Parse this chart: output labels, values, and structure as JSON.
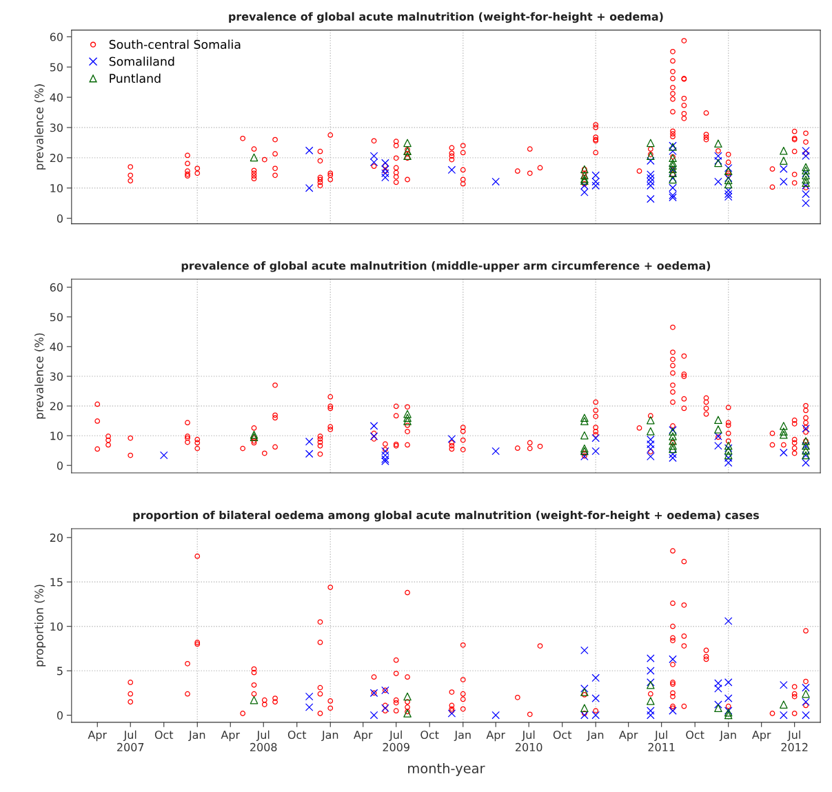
{
  "chart_data": [
    {
      "type": "scatter",
      "title": "prevalence of global acute malnutrition (weight-for-height + oedema)",
      "ylabel": "prevalence (%)",
      "xlim": [
        "2007-01-20",
        "2012-09-10"
      ],
      "ylim": [
        -1.8,
        62.2
      ],
      "yticks": [
        0,
        10,
        20,
        30,
        40,
        50,
        60
      ],
      "tick_labels": "y",
      "legend": "top left",
      "ref_lines": [
        {
          "axis": "x",
          "value": "2008-01-01",
          "color": "#bebebe",
          "line_style": "dotted"
        },
        {
          "axis": "x",
          "value": "2009-01-01",
          "color": "#bebebe",
          "line_style": "dotted"
        },
        {
          "axis": "x",
          "value": "2010-01-01",
          "color": "#bebebe",
          "line_style": "dotted"
        },
        {
          "axis": "x",
          "value": "2011-01-01",
          "color": "#bebebe",
          "line_style": "dotted"
        },
        {
          "axis": "x",
          "value": "2012-01-01",
          "color": "#bebebe",
          "line_style": "dotted"
        },
        {
          "axis": "y",
          "value": 10,
          "color": "#bebebe",
          "line_style": "dotted"
        },
        {
          "axis": "y",
          "value": 20,
          "color": "#bebebe",
          "line_style": "dotted"
        },
        {
          "axis": "y",
          "value": 30,
          "color": "#bebebe",
          "line_style": "dotted"
        }
      ],
      "series": [
        {
          "name": "South-central Somalia",
          "color": "#ff0000",
          "marker": "circle",
          "x": [
            "2007-07-01",
            "2007-07-01",
            "2007-07-01",
            "2007-12-05",
            "2007-12-05",
            "2007-12-05",
            "2007-12-05",
            "2007-12-05",
            "2008-01-01",
            "2008-01-01",
            "2008-05-05",
            "2008-06-05",
            "2008-06-05",
            "2008-06-05",
            "2008-06-05",
            "2008-06-05",
            "2008-07-04",
            "2008-08-02",
            "2008-08-02",
            "2008-08-02",
            "2008-08-02",
            "2008-12-04",
            "2008-12-04",
            "2008-12-04",
            "2008-12-04",
            "2008-12-04",
            "2008-12-04",
            "2009-01-01",
            "2009-01-01",
            "2009-01-01",
            "2009-01-01",
            "2009-05-01",
            "2009-05-01",
            "2009-06-01",
            "2009-06-01",
            "2009-07-01",
            "2009-07-01",
            "2009-07-01",
            "2009-07-01",
            "2009-07-01",
            "2009-07-01",
            "2009-07-01",
            "2009-08-01",
            "2009-08-01",
            "2009-08-01",
            "2009-08-01",
            "2009-12-01",
            "2009-12-01",
            "2009-12-01",
            "2009-12-01",
            "2010-01-01",
            "2010-01-01",
            "2010-01-01",
            "2010-01-01",
            "2010-01-01",
            "2010-05-31",
            "2010-07-04",
            "2010-07-04",
            "2010-08-01",
            "2010-12-01",
            "2010-12-01",
            "2010-12-01",
            "2010-12-01",
            "2011-01-01",
            "2011-01-01",
            "2011-01-01",
            "2011-01-01",
            "2011-01-01",
            "2011-01-01",
            "2011-05-01",
            "2011-06-01",
            "2011-06-01",
            "2011-08-01",
            "2011-08-01",
            "2011-08-01",
            "2011-08-01",
            "2011-08-01",
            "2011-08-01",
            "2011-08-01",
            "2011-08-01",
            "2011-08-01",
            "2011-08-01",
            "2011-08-01",
            "2011-08-01",
            "2011-08-01",
            "2011-08-01",
            "2011-09-01",
            "2011-09-01",
            "2011-09-01",
            "2011-09-01",
            "2011-09-01",
            "2011-09-01",
            "2011-09-01",
            "2011-11-01",
            "2011-11-01",
            "2011-11-01",
            "2011-11-01",
            "2011-12-04",
            "2012-01-01",
            "2012-01-01",
            "2012-01-01",
            "2012-01-01",
            "2012-05-01",
            "2012-05-01",
            "2012-07-01",
            "2012-07-01",
            "2012-07-01",
            "2012-07-01",
            "2012-07-01",
            "2012-07-01",
            "2012-08-01",
            "2012-08-01",
            "2012-08-01",
            "2012-08-01"
          ],
          "values": [
            17,
            14.2,
            12.4,
            20.8,
            18.1,
            15.6,
            14.6,
            14.0,
            16.5,
            14.9,
            26.4,
            22.9,
            15.8,
            14.9,
            14.0,
            13.1,
            19.4,
            26.0,
            21.3,
            16.5,
            14.2,
            22.1,
            19.0,
            13.5,
            12.8,
            11.9,
            10.8,
            27.5,
            14.9,
            14.2,
            12.8,
            25.6,
            17.2,
            17.4,
            15.6,
            25.4,
            24.0,
            19.9,
            16.7,
            15.1,
            13.7,
            11.9,
            22.7,
            21.3,
            19.9,
            12.8,
            23.3,
            21.5,
            20.6,
            19.4,
            24.0,
            21.7,
            16.0,
            12.8,
            11.4,
            15.6,
            22.9,
            14.9,
            16.7,
            16.2,
            14.9,
            13.5,
            11.4,
            30.9,
            30.0,
            26.8,
            26.0,
            25.6,
            21.7,
            15.6,
            22.9,
            21.1,
            55.1,
            52.0,
            48.5,
            46.2,
            43.2,
            41.2,
            39.4,
            35.2,
            28.8,
            27.9,
            27.0,
            20.3,
            16.0,
            14.5,
            58.7,
            46.2,
            46.0,
            39.6,
            37.3,
            34.6,
            33.0,
            34.8,
            27.7,
            26.8,
            26.0,
            22.3,
            21.1,
            18.5,
            14.9,
            14.2,
            16.3,
            10.3,
            28.7,
            26.4,
            26.0,
            22.1,
            14.5,
            11.7,
            28.1,
            25.2,
            21.5,
            10.1
          ]
        },
        {
          "name": "Somaliland",
          "color": "#0000ff",
          "marker": "cross",
          "x": [
            "2008-11-04",
            "2008-11-04",
            "2009-05-01",
            "2009-05-01",
            "2009-06-01",
            "2009-06-01",
            "2009-06-01",
            "2009-06-01",
            "2009-12-01",
            "2010-04-01",
            "2010-12-01",
            "2010-12-01",
            "2011-01-01",
            "2011-01-01",
            "2011-01-01",
            "2011-06-01",
            "2011-06-01",
            "2011-06-01",
            "2011-06-01",
            "2011-06-01",
            "2011-06-01",
            "2011-08-01",
            "2011-08-01",
            "2011-08-01",
            "2011-08-01",
            "2011-08-01",
            "2011-08-01",
            "2011-08-01",
            "2011-12-04",
            "2011-12-04",
            "2011-12-04",
            "2012-01-01",
            "2012-01-01",
            "2012-01-01",
            "2012-01-01",
            "2012-01-01",
            "2012-06-01",
            "2012-06-01",
            "2012-08-01",
            "2012-08-01",
            "2012-08-01",
            "2012-08-01",
            "2012-08-01",
            "2012-08-01"
          ],
          "values": [
            22.4,
            10.0,
            20.6,
            18.5,
            18.3,
            16.2,
            14.9,
            13.5,
            16.0,
            12.1,
            10.8,
            8.6,
            14.2,
            12.1,
            10.8,
            19.0,
            14.5,
            13.3,
            12.1,
            10.8,
            6.4,
            24.0,
            22.2,
            16.2,
            13.3,
            10.1,
            7.6,
            6.9,
            20.6,
            19.0,
            12.1,
            16.6,
            13.3,
            9.2,
            8.0,
            7.1,
            16.3,
            12.1,
            22.3,
            20.6,
            14.9,
            10.8,
            8.0,
            5.0
          ]
        },
        {
          "name": "Puntland",
          "color": "#006400",
          "marker": "triangle",
          "x": [
            "2008-06-05",
            "2009-08-01",
            "2009-08-01",
            "2009-08-01",
            "2010-12-01",
            "2010-12-01",
            "2010-12-01",
            "2010-12-01",
            "2011-06-01",
            "2011-06-01",
            "2011-08-01",
            "2011-08-01",
            "2011-08-01",
            "2011-08-01",
            "2011-08-01",
            "2011-08-01",
            "2011-08-01",
            "2011-12-04",
            "2011-12-04",
            "2012-01-01",
            "2012-01-01",
            "2012-01-01",
            "2012-06-01",
            "2012-06-01",
            "2012-08-01",
            "2012-08-01",
            "2012-08-01",
            "2012-08-01",
            "2012-08-01"
          ],
          "values": [
            20.1,
            24.9,
            22.2,
            20.6,
            16.2,
            14.2,
            13.0,
            12.4,
            24.9,
            20.6,
            23.6,
            19.9,
            18.3,
            17.4,
            16.2,
            14.9,
            12.8,
            24.7,
            18.3,
            15.6,
            12.6,
            11.2,
            22.3,
            19.0,
            16.9,
            15.8,
            14.2,
            12.8,
            11.7
          ]
        }
      ]
    },
    {
      "type": "scatter",
      "title": "prevalence of global acute malnutrition (middle-upper arm circumference + oedema)",
      "ylabel": "prevalence (%)",
      "xlim": [
        "2007-01-20",
        "2012-09-10"
      ],
      "ylim": [
        -2.5,
        62.7
      ],
      "yticks": [
        0,
        10,
        20,
        30,
        40,
        50,
        60
      ],
      "tick_labels": "y",
      "ref_lines": [
        {
          "axis": "x",
          "value": "2008-01-01",
          "color": "#bebebe",
          "line_style": "dotted"
        },
        {
          "axis": "x",
          "value": "2009-01-01",
          "color": "#bebebe",
          "line_style": "dotted"
        },
        {
          "axis": "x",
          "value": "2010-01-01",
          "color": "#bebebe",
          "line_style": "dotted"
        },
        {
          "axis": "x",
          "value": "2011-01-01",
          "color": "#bebebe",
          "line_style": "dotted"
        },
        {
          "axis": "x",
          "value": "2012-01-01",
          "color": "#bebebe",
          "line_style": "dotted"
        },
        {
          "axis": "y",
          "value": 10,
          "color": "#bebebe",
          "line_style": "dotted"
        },
        {
          "axis": "y",
          "value": 20,
          "color": "#bebebe",
          "line_style": "dotted"
        },
        {
          "axis": "y",
          "value": 30,
          "color": "#bebebe",
          "line_style": "dotted"
        }
      ],
      "series": [
        {
          "color": "#ff0000",
          "marker": "circle",
          "x": [
            "2007-04-01",
            "2007-04-01",
            "2007-04-01",
            "2007-05-01",
            "2007-05-01",
            "2007-05-01",
            "2007-07-01",
            "2007-07-01",
            "2007-12-05",
            "2007-12-05",
            "2007-12-05",
            "2007-12-05",
            "2008-01-01",
            "2008-01-01",
            "2008-01-01",
            "2008-05-05",
            "2008-06-05",
            "2008-06-05",
            "2008-06-05",
            "2008-06-05",
            "2008-07-04",
            "2008-08-02",
            "2008-08-02",
            "2008-08-02",
            "2008-08-02",
            "2008-12-04",
            "2008-12-04",
            "2008-12-04",
            "2008-12-04",
            "2008-12-04",
            "2009-01-01",
            "2009-01-01",
            "2009-01-01",
            "2009-01-01",
            "2009-01-01",
            "2009-05-01",
            "2009-05-01",
            "2009-06-01",
            "2009-06-01",
            "2009-07-01",
            "2009-07-01",
            "2009-07-01",
            "2009-07-01",
            "2009-08-01",
            "2009-08-01",
            "2009-08-01",
            "2009-08-01",
            "2009-12-01",
            "2009-12-01",
            "2009-12-01",
            "2010-01-01",
            "2010-01-01",
            "2010-01-01",
            "2010-01-01",
            "2010-05-31",
            "2010-07-04",
            "2010-07-04",
            "2010-08-01",
            "2010-12-01",
            "2010-12-01",
            "2011-01-01",
            "2011-01-01",
            "2011-01-01",
            "2011-01-01",
            "2011-01-01",
            "2011-01-01",
            "2011-05-01",
            "2011-06-01",
            "2011-06-01",
            "2011-08-01",
            "2011-08-01",
            "2011-08-01",
            "2011-08-01",
            "2011-08-01",
            "2011-08-01",
            "2011-08-01",
            "2011-08-01",
            "2011-08-01",
            "2011-08-01",
            "2011-09-01",
            "2011-09-01",
            "2011-09-01",
            "2011-09-01",
            "2011-09-01",
            "2011-11-01",
            "2011-11-01",
            "2011-11-01",
            "2011-11-01",
            "2011-12-04",
            "2012-01-01",
            "2012-01-01",
            "2012-01-01",
            "2012-01-01",
            "2012-01-01",
            "2012-05-01",
            "2012-05-01",
            "2012-06-01",
            "2012-07-01",
            "2012-07-01",
            "2012-07-01",
            "2012-07-01",
            "2012-07-01",
            "2012-07-01",
            "2012-08-01",
            "2012-08-01",
            "2012-08-01",
            "2012-08-01",
            "2012-08-01",
            "2012-08-01",
            "2012-08-01"
          ],
          "values": [
            20.6,
            14.9,
            5.5,
            9.8,
            8.5,
            6.9,
            9.2,
            3.4,
            14.4,
            9.8,
            9.2,
            7.8,
            8.7,
            7.6,
            5.7,
            5.7,
            12.6,
            9.2,
            8.2,
            7.6,
            4.1,
            27.0,
            16.9,
            16.0,
            6.2,
            9.8,
            8.9,
            7.8,
            6.6,
            3.8,
            23.1,
            19.9,
            19.2,
            13.0,
            12.1,
            10.8,
            8.9,
            7.2,
            5.3,
            19.9,
            16.7,
            7.1,
            6.6,
            19.7,
            13.5,
            11.4,
            6.9,
            7.6,
            6.6,
            5.5,
            12.8,
            11.5,
            8.5,
            5.3,
            5.8,
            7.6,
            5.7,
            6.4,
            4.1,
            3.2,
            21.3,
            18.5,
            16.5,
            12.8,
            11.4,
            10.3,
            12.6,
            16.7,
            4.6,
            46.5,
            38.1,
            35.7,
            33.6,
            31.1,
            27.0,
            24.7,
            21.3,
            13.3,
            7.6,
            36.8,
            30.7,
            30.0,
            22.4,
            19.2,
            22.7,
            21.3,
            19.2,
            17.3,
            9.5,
            19.5,
            14.4,
            13.5,
            10.8,
            8.2,
            10.8,
            6.9,
            6.9,
            15.2,
            14.0,
            8.7,
            7.6,
            5.8,
            4.1,
            20.1,
            18.5,
            16.0,
            14.4,
            12.8,
            11.2,
            8.2
          ]
        },
        {
          "color": "#0000ff",
          "marker": "cross",
          "x": [
            "2007-10-01",
            "2008-11-04",
            "2008-11-04",
            "2009-05-01",
            "2009-05-01",
            "2009-06-01",
            "2009-06-01",
            "2009-06-01",
            "2009-06-01",
            "2009-12-01",
            "2010-04-01",
            "2010-12-01",
            "2011-01-01",
            "2011-01-01",
            "2011-06-01",
            "2011-06-01",
            "2011-06-01",
            "2011-06-01",
            "2011-08-01",
            "2011-08-01",
            "2011-08-01",
            "2011-12-04",
            "2011-12-04",
            "2012-01-01",
            "2012-01-01",
            "2012-01-01",
            "2012-06-01",
            "2012-08-01",
            "2012-08-01",
            "2012-08-01",
            "2012-08-01"
          ],
          "values": [
            3.4,
            8.0,
            3.9,
            13.3,
            9.8,
            4.8,
            3.4,
            2.1,
            1.4,
            8.9,
            4.8,
            3.0,
            9.2,
            4.8,
            8.7,
            7.1,
            5.5,
            3.0,
            11.9,
            3.8,
            2.5,
            9.8,
            6.6,
            5.8,
            2.5,
            0.9,
            4.3,
            12.4,
            6.6,
            3.4,
            0.9
          ]
        },
        {
          "color": "#006400",
          "marker": "triangle",
          "x": [
            "2008-06-05",
            "2008-06-05",
            "2009-08-01",
            "2009-08-01",
            "2009-08-01",
            "2010-12-01",
            "2010-12-01",
            "2010-12-01",
            "2010-12-01",
            "2010-12-01",
            "2011-06-01",
            "2011-06-01",
            "2011-08-01",
            "2011-08-01",
            "2011-08-01",
            "2011-08-01",
            "2011-08-01",
            "2011-12-04",
            "2011-12-04",
            "2012-01-01",
            "2012-01-01",
            "2012-01-01",
            "2012-06-01",
            "2012-06-01",
            "2012-06-01",
            "2012-08-01",
            "2012-08-01",
            "2012-08-01",
            "2012-08-01"
          ],
          "values": [
            10.3,
            9.5,
            17.3,
            16.0,
            14.9,
            16.0,
            14.9,
            10.1,
            5.7,
            4.8,
            15.2,
            11.5,
            11.4,
            9.8,
            8.2,
            6.6,
            5.5,
            15.3,
            12.1,
            6.6,
            5.0,
            3.4,
            13.3,
            11.4,
            10.3,
            8.2,
            6.6,
            5.0,
            3.4
          ]
        }
      ]
    },
    {
      "type": "scatter",
      "title": "proportion of bilateral oedema among global acute malnutrition (weight-for-height + oedema) cases",
      "ylabel": "proportion (%)",
      "xlabel": "month-year",
      "xlim": [
        "2007-01-20",
        "2012-09-10"
      ],
      "ylim": [
        -0.8,
        21.0
      ],
      "yticks": [
        0,
        5,
        10,
        15,
        20
      ],
      "xticks": [
        {
          "value": "2007-04-01",
          "label": "Apr"
        },
        {
          "value": "2007-07-01",
          "label": "Jul\n2007"
        },
        {
          "value": "2007-10-01",
          "label": "Oct"
        },
        {
          "value": "2008-01-01",
          "label": "Jan"
        },
        {
          "value": "2008-04-01",
          "label": "Apr"
        },
        {
          "value": "2008-07-01",
          "label": "Jul\n2008"
        },
        {
          "value": "2008-10-01",
          "label": "Oct"
        },
        {
          "value": "2009-01-01",
          "label": "Jan"
        },
        {
          "value": "2009-04-01",
          "label": "Apr"
        },
        {
          "value": "2009-07-01",
          "label": "Jul\n2009"
        },
        {
          "value": "2009-10-01",
          "label": "Oct"
        },
        {
          "value": "2010-01-01",
          "label": "Jan"
        },
        {
          "value": "2010-04-01",
          "label": "Apr"
        },
        {
          "value": "2010-07-01",
          "label": "Jul\n2010"
        },
        {
          "value": "2010-10-01",
          "label": "Oct"
        },
        {
          "value": "2011-01-01",
          "label": "Jan"
        },
        {
          "value": "2011-04-01",
          "label": "Apr"
        },
        {
          "value": "2011-07-01",
          "label": "Jul\n2011"
        },
        {
          "value": "2011-10-01",
          "label": "Oct"
        },
        {
          "value": "2012-01-01",
          "label": "Jan"
        },
        {
          "value": "2012-04-01",
          "label": "Apr"
        },
        {
          "value": "2012-07-01",
          "label": "Jul\n2012"
        }
      ],
      "ref_lines": [
        {
          "axis": "x",
          "value": "2008-01-01",
          "color": "#bebebe",
          "line_style": "dotted"
        },
        {
          "axis": "x",
          "value": "2009-01-01",
          "color": "#bebebe",
          "line_style": "dotted"
        },
        {
          "axis": "x",
          "value": "2010-01-01",
          "color": "#bebebe",
          "line_style": "dotted"
        },
        {
          "axis": "x",
          "value": "2011-01-01",
          "color": "#bebebe",
          "line_style": "dotted"
        },
        {
          "axis": "x",
          "value": "2012-01-01",
          "color": "#bebebe",
          "line_style": "dotted"
        },
        {
          "axis": "y",
          "value": 5,
          "color": "#bebebe",
          "line_style": "dotted"
        },
        {
          "axis": "y",
          "value": 10,
          "color": "#bebebe",
          "line_style": "dotted"
        },
        {
          "axis": "y",
          "value": 15,
          "color": "#bebebe",
          "line_style": "dotted"
        }
      ],
      "series": [
        {
          "color": "#ff0000",
          "marker": "circle",
          "x": [
            "2007-07-01",
            "2007-07-01",
            "2007-07-01",
            "2007-12-05",
            "2007-12-05",
            "2008-01-01",
            "2008-01-01",
            "2008-01-01",
            "2008-05-05",
            "2008-06-05",
            "2008-06-05",
            "2008-06-05",
            "2008-06-05",
            "2008-07-04",
            "2008-07-04",
            "2008-08-02",
            "2008-08-02",
            "2008-12-04",
            "2008-12-04",
            "2008-12-04",
            "2008-12-04",
            "2008-12-04",
            "2009-01-01",
            "2009-01-01",
            "2009-01-01",
            "2009-05-01",
            "2009-05-01",
            "2009-06-01",
            "2009-06-01",
            "2009-06-01",
            "2009-07-01",
            "2009-07-01",
            "2009-07-01",
            "2009-07-01",
            "2009-07-01",
            "2009-08-01",
            "2009-08-01",
            "2009-08-01",
            "2009-08-01",
            "2009-08-01",
            "2009-12-01",
            "2009-12-01",
            "2009-12-01",
            "2009-12-01",
            "2010-01-01",
            "2010-01-01",
            "2010-01-01",
            "2010-01-01",
            "2010-01-01",
            "2010-05-31",
            "2010-07-04",
            "2010-08-01",
            "2010-12-01",
            "2010-12-01",
            "2011-01-01",
            "2011-06-01",
            "2011-08-01",
            "2011-08-01",
            "2011-08-01",
            "2011-08-01",
            "2011-08-01",
            "2011-08-01",
            "2011-08-01",
            "2011-08-01",
            "2011-08-01",
            "2011-08-01",
            "2011-08-01",
            "2011-08-01",
            "2011-09-01",
            "2011-09-01",
            "2011-09-01",
            "2011-09-01",
            "2011-09-01",
            "2011-11-01",
            "2011-11-01",
            "2011-11-01",
            "2012-01-01",
            "2012-05-01",
            "2012-07-01",
            "2012-07-01",
            "2012-07-01",
            "2012-07-01",
            "2012-08-01",
            "2012-08-01",
            "2012-08-01"
          ],
          "values": [
            3.7,
            2.4,
            1.5,
            5.8,
            2.4,
            17.9,
            8.2,
            8.0,
            0.2,
            5.2,
            4.8,
            3.4,
            2.4,
            1.7,
            1.2,
            1.9,
            1.5,
            10.5,
            8.2,
            3.1,
            2.4,
            0.2,
            14.4,
            1.6,
            0.8,
            4.3,
            2.5,
            2.8,
            1.1,
            0.5,
            6.2,
            4.7,
            1.7,
            1.4,
            0.5,
            13.8,
            4.3,
            1.5,
            0.9,
            0.4,
            2.6,
            1.1,
            0.7,
            0.5,
            7.9,
            4.0,
            2.4,
            1.8,
            0.7,
            2.0,
            0.1,
            7.8,
            2.3,
            0.2,
            0.5,
            2.4,
            18.5,
            12.6,
            10.0,
            8.7,
            8.4,
            5.7,
            3.7,
            3.5,
            2.5,
            2.1,
            1.0,
            0.8,
            17.3,
            12.4,
            8.9,
            7.8,
            1.0,
            7.3,
            6.6,
            6.3,
            1.0,
            0.2,
            3.2,
            2.4,
            2.1,
            0.2,
            9.5,
            3.8,
            1.1
          ]
        },
        {
          "color": "#0000ff",
          "marker": "cross",
          "x": [
            "2008-11-04",
            "2008-11-04",
            "2009-05-01",
            "2009-05-01",
            "2009-06-01",
            "2009-06-01",
            "2009-12-01",
            "2010-04-01",
            "2010-12-01",
            "2010-12-01",
            "2010-12-01",
            "2011-01-01",
            "2011-01-01",
            "2011-01-01",
            "2011-06-01",
            "2011-06-01",
            "2011-06-01",
            "2011-06-01",
            "2011-06-01",
            "2011-08-01",
            "2011-08-01",
            "2011-12-04",
            "2011-12-04",
            "2011-12-04",
            "2012-01-01",
            "2012-01-01",
            "2012-01-01",
            "2012-01-01",
            "2012-06-01",
            "2012-06-01",
            "2012-08-01",
            "2012-08-01",
            "2012-08-01"
          ],
          "values": [
            2.1,
            0.9,
            2.5,
            0.0,
            2.8,
            0.8,
            0.2,
            0.0,
            7.3,
            3.0,
            0.0,
            4.2,
            1.9,
            0.0,
            6.4,
            5.0,
            3.7,
            0.5,
            0.0,
            6.3,
            0.5,
            3.6,
            3.0,
            1.2,
            10.6,
            3.7,
            1.9,
            0.5,
            3.4,
            0.0,
            3.1,
            1.5,
            0.0
          ]
        },
        {
          "color": "#006400",
          "marker": "triangle",
          "x": [
            "2008-06-05",
            "2009-08-01",
            "2009-08-01",
            "2010-12-01",
            "2010-12-01",
            "2011-06-01",
            "2011-06-01",
            "2011-12-04",
            "2012-01-01",
            "2012-01-01",
            "2012-06-01",
            "2012-08-01"
          ],
          "values": [
            1.7,
            2.1,
            0.2,
            2.6,
            0.8,
            3.4,
            1.6,
            0.8,
            0.3,
            0.0,
            1.2,
            2.4
          ]
        }
      ]
    }
  ]
}
